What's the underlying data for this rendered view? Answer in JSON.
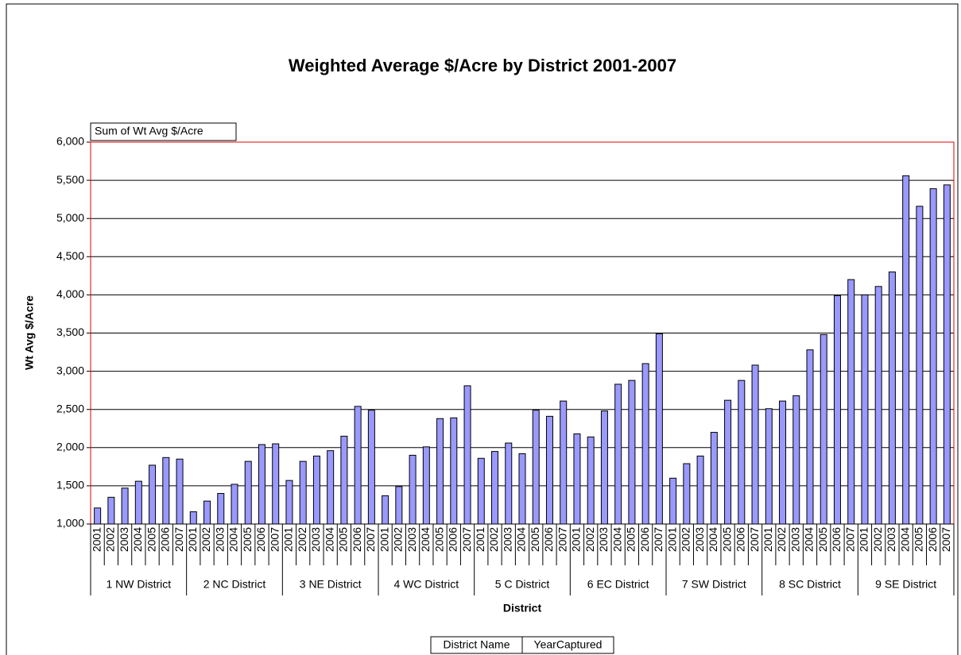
{
  "chart_data": {
    "type": "bar",
    "title": "Weighted Average $/Acre by District 2001-2007",
    "field_button": "Sum of Wt Avg $/Acre",
    "row_buttons": [
      "District Name",
      "YearCaptured"
    ],
    "y_label": "Wt Avg $/Acre",
    "x_label": "District",
    "color": "#9999ff",
    "grid": true,
    "ylim": [
      1000,
      6000
    ],
    "yticks": [
      {
        "value": 1000,
        "label": "1,000"
      },
      {
        "value": 1500,
        "label": "1,500"
      },
      {
        "value": 2000,
        "label": "2,000"
      },
      {
        "value": 2500,
        "label": "2,500"
      },
      {
        "value": 3000,
        "label": "3,000"
      },
      {
        "value": 3500,
        "label": "3,500"
      },
      {
        "value": 4000,
        "label": "4,000"
      },
      {
        "value": 4500,
        "label": "4,500"
      },
      {
        "value": 5000,
        "label": "5,000"
      },
      {
        "value": 5500,
        "label": "5,500"
      },
      {
        "value": 6000,
        "label": "6,000"
      }
    ],
    "groups": [
      {
        "name": "1 NW District",
        "categories": [
          "2001",
          "2002",
          "2003",
          "2004",
          "2005",
          "2006",
          "2007"
        ],
        "values": [
          1210,
          1350,
          1470,
          1560,
          1770,
          1870,
          1850
        ]
      },
      {
        "name": "2 NC District",
        "categories": [
          "2001",
          "2002",
          "2003",
          "2004",
          "2005",
          "2006",
          "2007"
        ],
        "values": [
          1160,
          1300,
          1400,
          1520,
          1820,
          2040,
          2050
        ]
      },
      {
        "name": "3 NE District",
        "categories": [
          "2001",
          "2002",
          "2003",
          "2004",
          "2005",
          "2006",
          "2007"
        ],
        "values": [
          1570,
          1820,
          1890,
          1960,
          2150,
          2540,
          2490
        ]
      },
      {
        "name": "4 WC District",
        "categories": [
          "2001",
          "2002",
          "2003",
          "2004",
          "2005",
          "2006",
          "2007"
        ],
        "values": [
          1370,
          1490,
          1900,
          2010,
          2380,
          2390,
          2810
        ]
      },
      {
        "name": "5 C District",
        "categories": [
          "2001",
          "2002",
          "2003",
          "2004",
          "2005",
          "2006",
          "2007"
        ],
        "values": [
          1860,
          1950,
          2060,
          1920,
          2490,
          2410,
          2610
        ]
      },
      {
        "name": "6 EC District",
        "categories": [
          "2001",
          "2002",
          "2003",
          "2004",
          "2005",
          "2006",
          "2007"
        ],
        "values": [
          2180,
          2140,
          2480,
          2830,
          2880,
          3100,
          3490
        ]
      },
      {
        "name": "7 SW District",
        "categories": [
          "2001",
          "2002",
          "2003",
          "2004",
          "2005",
          "2006",
          "2007"
        ],
        "values": [
          1600,
          1790,
          1890,
          2200,
          2620,
          2880,
          3080
        ]
      },
      {
        "name": "8 SC District",
        "categories": [
          "2001",
          "2002",
          "2003",
          "2004",
          "2005",
          "2006",
          "2007"
        ],
        "values": [
          2510,
          2610,
          2680,
          3280,
          3480,
          3990,
          4200
        ]
      },
      {
        "name": "9 SE District",
        "categories": [
          "2001",
          "2002",
          "2003",
          "2004",
          "2005",
          "2006",
          "2007"
        ],
        "values": [
          4000,
          4110,
          4300,
          5560,
          5160,
          5390,
          5440
        ]
      }
    ]
  }
}
